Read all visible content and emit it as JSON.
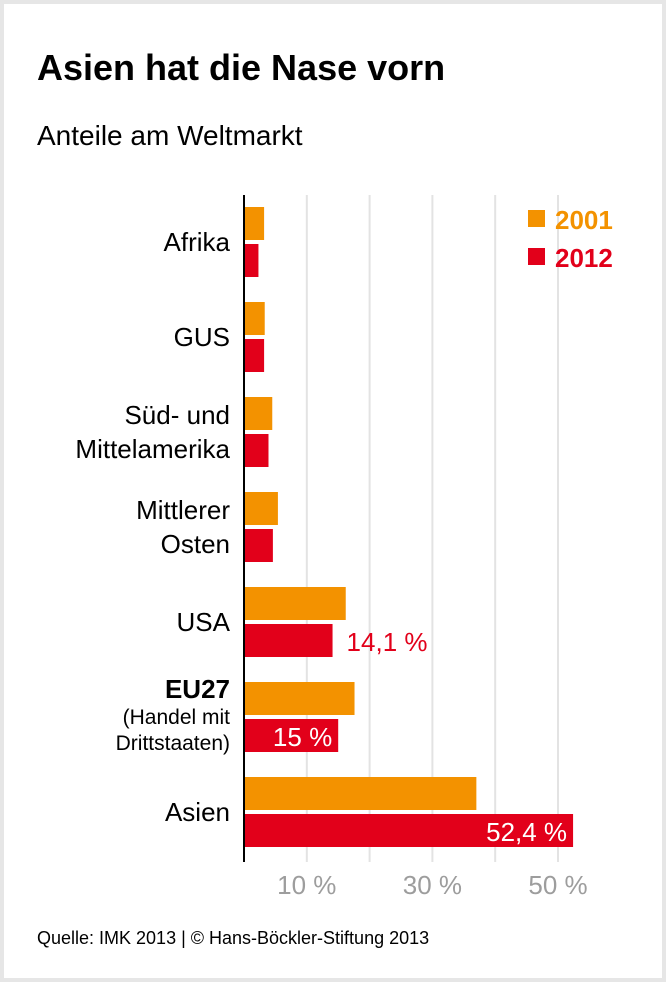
{
  "chart_data": {
    "type": "bar",
    "orientation": "horizontal",
    "title": "Asien hat die Nase vorn",
    "subtitle": "Anteile am Weltmarkt",
    "categories": [
      {
        "lines": [
          "Afrika"
        ],
        "bold_first": false
      },
      {
        "lines": [
          "GUS"
        ],
        "bold_first": false
      },
      {
        "lines": [
          "Süd- und",
          "Mittelamerika"
        ],
        "bold_first": false
      },
      {
        "lines": [
          "Mittlerer",
          "Osten"
        ],
        "bold_first": false
      },
      {
        "lines": [
          "USA"
        ],
        "bold_first": false
      },
      {
        "lines": [
          "EU27",
          "(Handel mit",
          "Drittstaaten)"
        ],
        "bold_first": true
      },
      {
        "lines": [
          "Asien"
        ],
        "bold_first": false
      }
    ],
    "series": [
      {
        "name": "2001",
        "color": "#f39200",
        "values": [
          3.2,
          3.3,
          4.5,
          5.4,
          16.2,
          17.6,
          37.0
        ]
      },
      {
        "name": "2012",
        "color": "#e2001a",
        "values": [
          2.3,
          3.2,
          3.9,
          4.6,
          14.1,
          15.0,
          52.4
        ],
        "data_labels": [
          null,
          null,
          null,
          null,
          "14,1 %",
          "15 %",
          "52,4 %"
        ]
      }
    ],
    "xlim": [
      0,
      52.5
    ],
    "gridlines": [
      10,
      20,
      30,
      40,
      50
    ],
    "xticks": [
      {
        "value": 10,
        "label": "10 %"
      },
      {
        "value": 30,
        "label": "30 %"
      },
      {
        "value": 50,
        "label": "50 %"
      }
    ],
    "grid": true,
    "legend_position": "top-right"
  },
  "footer": {
    "source": "Quelle: IMK 2013 | © Hans-Böckler-Stiftung 2013"
  }
}
